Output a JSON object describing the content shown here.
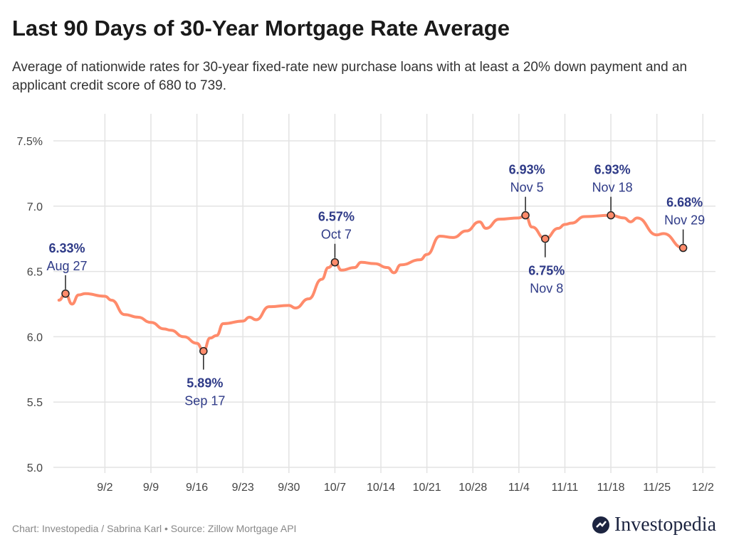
{
  "header": {
    "title": "Last 90 Days of 30-Year Mortgage Rate Average",
    "subtitle": "Average of nationwide rates for 30-year fixed-rate new purchase loans with at least a 20% down payment and an applicant credit score of 680 to 739."
  },
  "footer": {
    "credit": "Chart: Investopedia / Sabrina Karl • Source: Zillow Mortgage API",
    "logo": "Investopedia"
  },
  "colors": {
    "line": "#FF8B6B",
    "annotation": "#2E3A87",
    "grid": "#e3e3e3"
  },
  "chart_data": {
    "type": "line",
    "title": "",
    "xlabel": "",
    "ylabel": "",
    "ylim": [
      5.0,
      7.5
    ],
    "y_ticks": [
      "5.0",
      "5.5",
      "6.0",
      "6.5",
      "7.0",
      "7.5%"
    ],
    "y_values": [
      5.0,
      5.5,
      6.0,
      6.5,
      7.0,
      7.5
    ],
    "x_ticks": [
      "9/2",
      "9/9",
      "9/16",
      "9/23",
      "9/30",
      "10/7",
      "10/14",
      "10/21",
      "10/28",
      "11/4",
      "11/11",
      "11/18",
      "11/25",
      "12/2"
    ],
    "grid": true,
    "series": [
      {
        "x": [
          "8/26",
          "8/27",
          "8/28",
          "8/29",
          "8/30",
          "9/2",
          "9/3",
          "9/5",
          "9/7",
          "9/9",
          "9/11",
          "9/12",
          "9/14",
          "9/16",
          "9/17",
          "9/18",
          "9/19",
          "9/20",
          "9/23",
          "9/24",
          "9/25",
          "9/27",
          "9/30",
          "10/1",
          "10/3",
          "10/5",
          "10/6",
          "10/7",
          "10/8",
          "10/10",
          "10/11",
          "10/13",
          "10/15",
          "10/16",
          "10/17",
          "10/20",
          "10/21",
          "10/23",
          "10/25",
          "10/27",
          "10/29",
          "10/30",
          "11/1",
          "11/4",
          "11/5",
          "11/6",
          "11/8",
          "11/10",
          "11/11",
          "11/12",
          "11/14",
          "11/18",
          "11/20",
          "11/21",
          "11/22",
          "11/25",
          "11/26",
          "11/29"
        ],
        "y": [
          6.28,
          6.33,
          6.25,
          6.32,
          6.33,
          6.31,
          6.28,
          6.17,
          6.15,
          6.11,
          6.06,
          6.05,
          6.0,
          5.95,
          5.89,
          5.99,
          6.01,
          6.1,
          6.12,
          6.15,
          6.13,
          6.23,
          6.24,
          6.22,
          6.29,
          6.44,
          6.53,
          6.57,
          6.51,
          6.53,
          6.57,
          6.56,
          6.53,
          6.49,
          6.55,
          6.59,
          6.63,
          6.77,
          6.76,
          6.81,
          6.88,
          6.83,
          6.9,
          6.91,
          6.93,
          6.84,
          6.75,
          6.83,
          6.86,
          6.87,
          6.92,
          6.93,
          6.91,
          6.88,
          6.91,
          6.78,
          6.79,
          6.68
        ]
      }
    ],
    "annotations": [
      {
        "x": "8/27",
        "y": 6.33,
        "value": "6.33%",
        "date": "Aug 27",
        "position": "above"
      },
      {
        "x": "9/17",
        "y": 5.89,
        "value": "5.89%",
        "date": "Sep 17",
        "position": "below"
      },
      {
        "x": "10/7",
        "y": 6.57,
        "value": "6.57%",
        "date": "Oct 7",
        "position": "above"
      },
      {
        "x": "11/5",
        "y": 6.93,
        "value": "6.93%",
        "date": "Nov 5",
        "position": "above"
      },
      {
        "x": "11/8",
        "y": 6.75,
        "value": "6.75%",
        "date": "Nov 8",
        "position": "below"
      },
      {
        "x": "11/18",
        "y": 6.93,
        "value": "6.93%",
        "date": "Nov 18",
        "position": "above"
      },
      {
        "x": "11/29",
        "y": 6.68,
        "value": "6.68%",
        "date": "Nov 29",
        "position": "above"
      }
    ]
  }
}
